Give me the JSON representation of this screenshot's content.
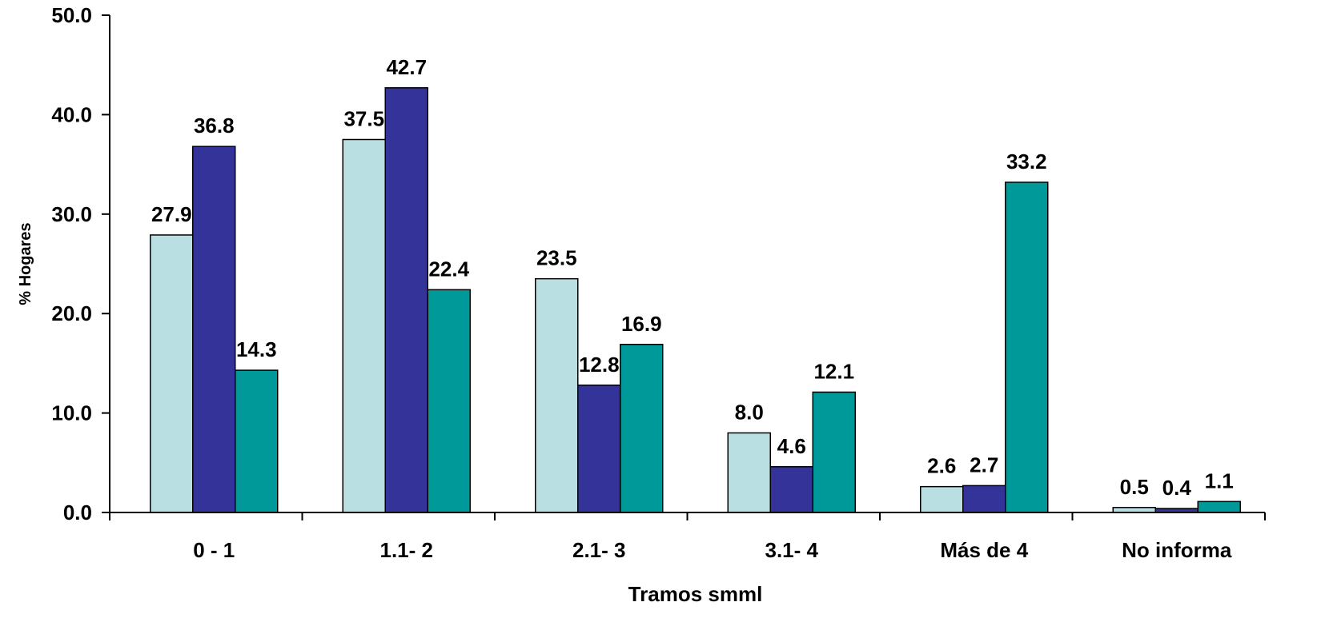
{
  "chart_data": {
    "type": "bar",
    "title": "",
    "xlabel": "Tramos smml",
    "ylabel": "% Hogares",
    "categories": [
      "0 - 1",
      "1.1- 2",
      "2.1- 3",
      "3.1- 4",
      "Más de 4",
      "No informa"
    ],
    "series": [
      {
        "values": [
          27.9,
          37.5,
          23.5,
          8.0,
          2.6,
          0.5
        ],
        "color": "#B9DFE3"
      },
      {
        "values": [
          36.8,
          42.7,
          12.8,
          4.6,
          2.7,
          0.4
        ],
        "color": "#333399"
      },
      {
        "values": [
          14.3,
          22.4,
          16.9,
          12.1,
          33.2,
          1.1
        ],
        "color": "#009999"
      }
    ],
    "value_labels": [
      [
        "27.9",
        "37.5",
        "23.5",
        "8.0",
        "2.6",
        "0.5"
      ],
      [
        "36.8",
        "42.7",
        "12.8",
        "4.6",
        "2.7",
        "0.4"
      ],
      [
        "14.3",
        "22.4",
        "16.9",
        "12.1",
        "33.2",
        "1.1"
      ]
    ],
    "ylim": [
      0,
      50
    ],
    "yticks": [
      "0.0",
      "10.0",
      "20.0",
      "30.0",
      "40.0",
      "50.0"
    ],
    "ytick_values": [
      0,
      10,
      20,
      30,
      40,
      50
    ],
    "grid": false,
    "legend": "none"
  }
}
